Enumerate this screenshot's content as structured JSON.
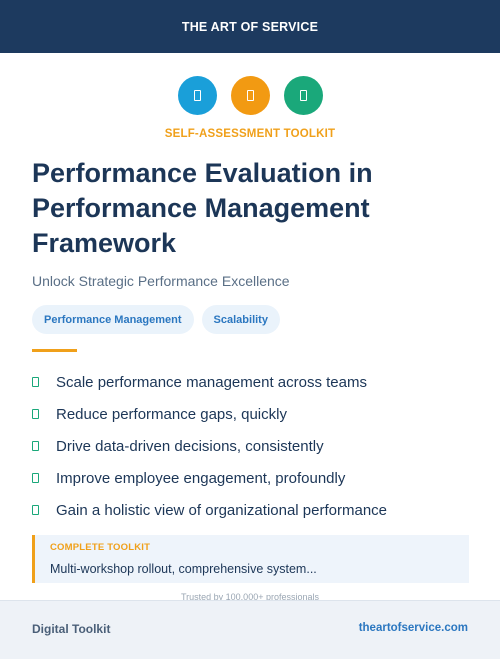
{
  "header": {
    "brand": "THE ART OF SERVICE"
  },
  "icons": [
    {
      "name": "document-icon",
      "color": "#1a9fd9"
    },
    {
      "name": "document-icon",
      "color": "#f29a12"
    },
    {
      "name": "document-icon",
      "color": "#1aa87a"
    }
  ],
  "accent_color": "#f0a01a",
  "eyebrow": "SELF-ASSESSMENT TOOLKIT",
  "title": "Performance Evaluation in Performance Management Framework",
  "subtitle": "Unlock Strategic Performance Excellence",
  "tags": [
    "Performance Management",
    "Scalability"
  ],
  "benefits": [
    "Scale performance management across teams",
    "Reduce performance gaps, quickly",
    "Drive data-driven decisions, consistently",
    "Improve employee engagement, profoundly",
    "Gain a holistic view of organizational performance"
  ],
  "check_color": "#1aa87a",
  "callout": {
    "label": "COMPLETE TOOLKIT",
    "text": "Multi-workshop rollout, comprehensive system..."
  },
  "trusted": "Trusted by 100,000+ professionals",
  "footer": {
    "left": "Digital Toolkit",
    "right": "theartofservice.com"
  }
}
